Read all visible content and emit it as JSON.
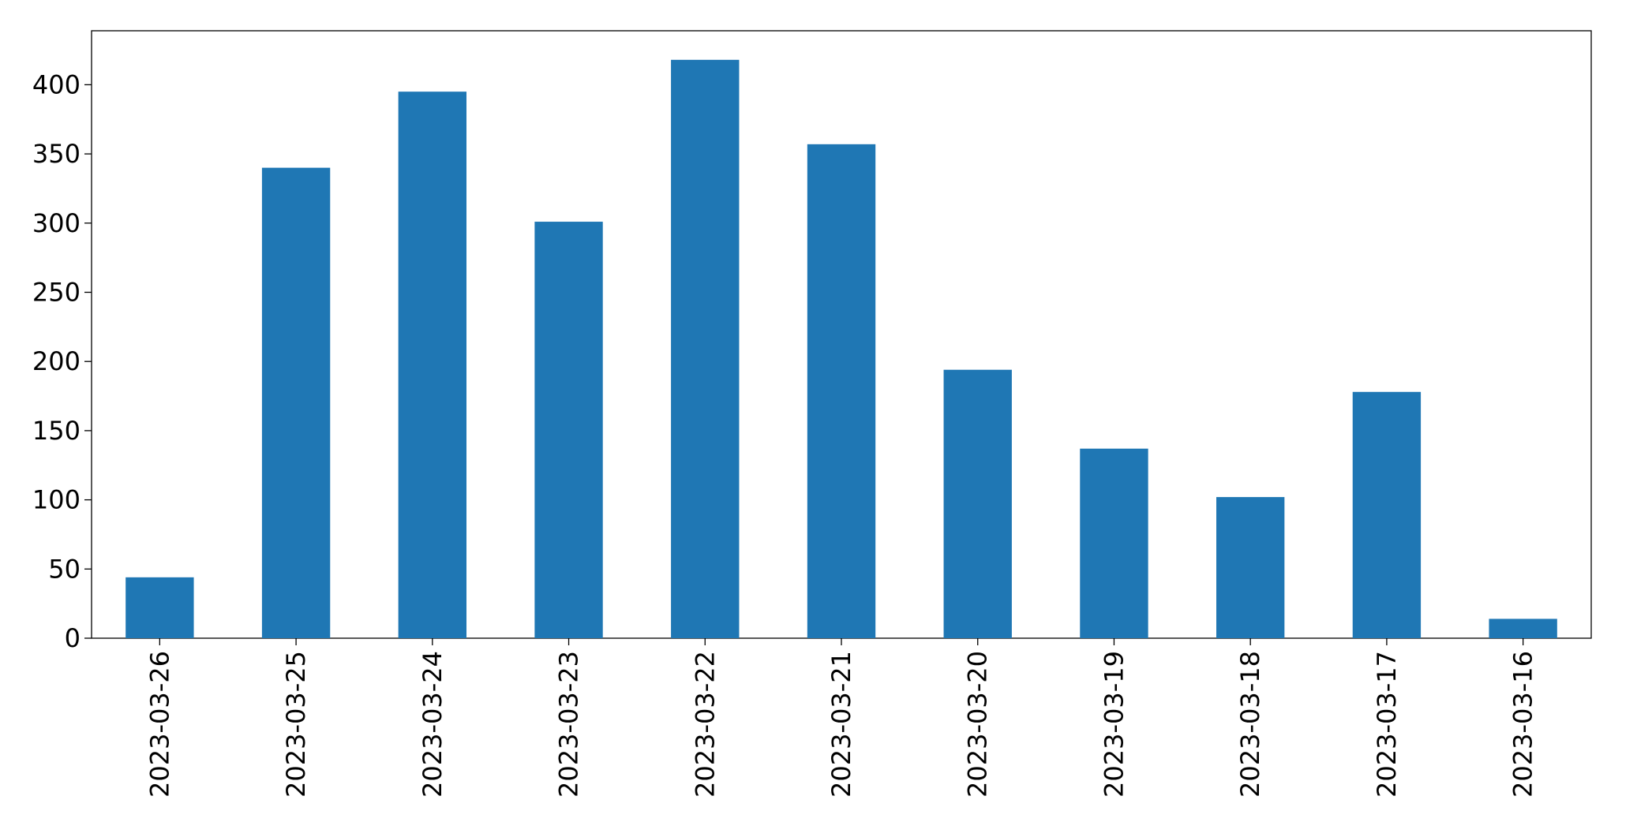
{
  "chart_data": {
    "type": "bar",
    "categories": [
      "2023-03-26",
      "2023-03-25",
      "2023-03-24",
      "2023-03-23",
      "2023-03-22",
      "2023-03-21",
      "2023-03-20",
      "2023-03-19",
      "2023-03-18",
      "2023-03-17",
      "2023-03-16"
    ],
    "values": [
      44,
      340,
      395,
      301,
      418,
      357,
      194,
      137,
      102,
      178,
      14
    ],
    "color": "#1f77b4",
    "ylim": [
      0,
      439
    ],
    "yticks": [
      0,
      50,
      100,
      150,
      200,
      250,
      300,
      350,
      400
    ],
    "grid": false
  }
}
